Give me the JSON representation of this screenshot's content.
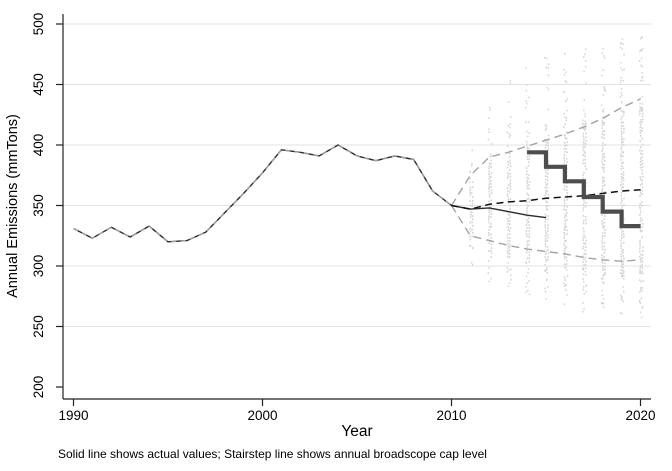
{
  "figure": {
    "caption": "Solid line shows actual values; Stairstep line shows annual broadscope cap level"
  },
  "chart_data": {
    "type": "line",
    "title": "",
    "xlabel": "Year",
    "ylabel": "Annual Emissions (mmTons)",
    "xlim": [
      1989.5,
      2020.6
    ],
    "ylim": [
      200,
      500
    ],
    "x_ticks": [
      1990,
      2000,
      2010,
      2020
    ],
    "y_ticks": [
      200,
      250,
      300,
      350,
      400,
      450,
      500
    ],
    "grid": "horizontal-only",
    "grid_color": "#e3e3e3",
    "axis_color": "#222222",
    "legend_position": "none",
    "series": [
      {
        "name": "actual-values",
        "description": "Solid line shows actual values",
        "style": "solid",
        "color": "#2b2b2b",
        "width": 1.4,
        "x": [
          1990,
          1991,
          1992,
          1993,
          1994,
          1995,
          1996,
          1997,
          1998,
          1999,
          2000,
          2001,
          2002,
          2003,
          2004,
          2005,
          2006,
          2007,
          2008,
          2009,
          2010,
          2011,
          2012,
          2013,
          2014,
          2015
        ],
        "values": [
          331,
          323,
          332,
          324,
          333,
          320,
          321,
          328,
          344,
          360,
          377,
          396,
          394,
          391,
          400,
          391,
          387,
          391,
          388,
          362,
          350,
          347,
          348,
          345,
          342,
          340
        ]
      },
      {
        "name": "historical-fit-overlay",
        "description": "Gray dashed overlay coinciding with actuals in-sample",
        "style": "dashed",
        "color": "#a3a3a3",
        "width": 1.3,
        "x": [
          1990,
          1991,
          1992,
          1993,
          1994,
          1995,
          1996,
          1997,
          1998,
          1999,
          2000,
          2001,
          2002,
          2003,
          2004,
          2005,
          2006,
          2007,
          2008,
          2009,
          2010
        ],
        "values": [
          331,
          323,
          332,
          324,
          333,
          320,
          321,
          328,
          344,
          360,
          377,
          396,
          394,
          391,
          400,
          391,
          387,
          391,
          388,
          362,
          350
        ]
      },
      {
        "name": "central-projection",
        "description": "Black dashed central projection",
        "style": "dashed",
        "color": "#111111",
        "width": 1.5,
        "x": [
          2010,
          2011,
          2012,
          2013,
          2014,
          2015,
          2016,
          2017,
          2018,
          2019,
          2020
        ],
        "values": [
          350,
          347,
          351,
          353,
          354,
          356,
          357,
          358,
          360,
          362,
          363
        ]
      },
      {
        "name": "upper-confidence-band",
        "description": "Upper gray dashed band",
        "style": "dashed",
        "color": "#a3a3a3",
        "width": 1.4,
        "x": [
          2010,
          2011,
          2012,
          2013,
          2014,
          2015,
          2016,
          2017,
          2018,
          2019,
          2020
        ],
        "values": [
          350,
          375,
          390,
          394,
          399,
          404,
          409,
          415,
          422,
          431,
          438
        ]
      },
      {
        "name": "lower-confidence-band",
        "description": "Lower gray dashed band",
        "style": "dashed",
        "color": "#a3a3a3",
        "width": 1.4,
        "x": [
          2010,
          2011,
          2012,
          2013,
          2014,
          2015,
          2016,
          2017,
          2018,
          2019,
          2020
        ],
        "values": [
          350,
          325,
          321,
          317,
          314,
          312,
          310,
          307,
          305,
          304,
          305
        ]
      },
      {
        "name": "broadscope-cap",
        "description": "Stairstep line shows annual broadscope cap level",
        "style": "stairstep",
        "color": "#4d4d4d",
        "width": 4.2,
        "step_years": [
          2014,
          2015,
          2016,
          2017,
          2018,
          2019
        ],
        "step_values": [
          394,
          382,
          370,
          357,
          345,
          333
        ],
        "end_year": 2020
      }
    ],
    "simulation_dots": {
      "description": "Vertical columns of light gray simulation draws, one column per projection year",
      "color": "#d3d3d3",
      "columns": [
        {
          "year": 2011,
          "dense": [
            322,
            367
          ],
          "sparse": [
            293,
            402
          ]
        },
        {
          "year": 2012,
          "dense": [
            312,
            388
          ],
          "sparse": [
            282,
            440
          ]
        },
        {
          "year": 2013,
          "dense": [
            307,
            394
          ],
          "sparse": [
            278,
            458
          ]
        },
        {
          "year": 2014,
          "dense": [
            304,
            399
          ],
          "sparse": [
            274,
            466
          ]
        },
        {
          "year": 2015,
          "dense": [
            302,
            404
          ],
          "sparse": [
            270,
            473
          ]
        },
        {
          "year": 2016,
          "dense": [
            300,
            409
          ],
          "sparse": [
            266,
            478
          ]
        },
        {
          "year": 2017,
          "dense": [
            298,
            414
          ],
          "sparse": [
            262,
            482
          ]
        },
        {
          "year": 2018,
          "dense": [
            297,
            419
          ],
          "sparse": [
            260,
            486
          ]
        },
        {
          "year": 2019,
          "dense": [
            296,
            424
          ],
          "sparse": [
            258,
            489
          ]
        },
        {
          "year": 2020,
          "dense": [
            295,
            428
          ],
          "sparse": [
            257,
            491
          ]
        }
      ]
    }
  }
}
